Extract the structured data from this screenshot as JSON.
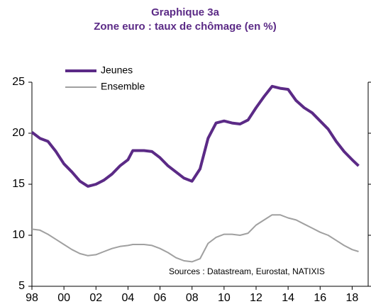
{
  "chart_data": {
    "type": "line",
    "title": "Graphique 3a",
    "subtitle": "Zone euro : taux de chômage (en %)",
    "annotation": "Sources : Datastream, Eurostat, NATIXIS",
    "legend": "top-left",
    "x": [
      1998,
      1998.5,
      1999,
      1999.5,
      2000,
      2000.5,
      2001,
      2001.5,
      2002,
      2002.5,
      2003,
      2003.5,
      2004,
      2004.3,
      2005,
      2005.5,
      2006,
      2006.5,
      2007,
      2007.5,
      2008,
      2008.5,
      2009,
      2009.5,
      2010,
      2010.5,
      2011,
      2011.5,
      2012,
      2012.5,
      2013,
      2013.5,
      2014,
      2014.5,
      2015,
      2015.5,
      2016,
      2016.5,
      2017,
      2017.5,
      2018,
      2018.4
    ],
    "series": [
      {
        "name": "Jeunes",
        "color": "#5b2a86",
        "values": [
          20.1,
          19.5,
          19.2,
          18.2,
          17.0,
          16.2,
          15.3,
          14.8,
          15.0,
          15.4,
          16.0,
          16.8,
          17.4,
          18.3,
          18.3,
          18.2,
          17.6,
          16.8,
          16.2,
          15.6,
          15.3,
          16.5,
          19.5,
          21.0,
          21.2,
          21.0,
          20.9,
          21.3,
          22.5,
          23.6,
          24.6,
          24.4,
          24.3,
          23.2,
          22.5,
          22.0,
          21.2,
          20.4,
          19.2,
          18.2,
          17.4,
          16.8
        ]
      },
      {
        "name": "Ensemble",
        "color": "#a0a0a0",
        "values": [
          10.6,
          10.5,
          10.1,
          9.6,
          9.1,
          8.6,
          8.2,
          8.0,
          8.1,
          8.4,
          8.7,
          8.9,
          9.0,
          9.1,
          9.1,
          9.0,
          8.7,
          8.3,
          7.8,
          7.5,
          7.4,
          7.7,
          9.2,
          9.8,
          10.1,
          10.1,
          10.0,
          10.2,
          11.0,
          11.5,
          12.0,
          12.0,
          11.7,
          11.5,
          11.1,
          10.7,
          10.3,
          10.0,
          9.5,
          9.0,
          8.6,
          8.4
        ]
      }
    ],
    "xlim": [
      1998,
      2019
    ],
    "xticks": [
      {
        "value": 1998,
        "label": "98"
      },
      {
        "value": 2000,
        "label": "00"
      },
      {
        "value": 2002,
        "label": "02"
      },
      {
        "value": 2004,
        "label": "04"
      },
      {
        "value": 2006,
        "label": "06"
      },
      {
        "value": 2008,
        "label": "08"
      },
      {
        "value": 2010,
        "label": "10"
      },
      {
        "value": 2012,
        "label": "12"
      },
      {
        "value": 2014,
        "label": "14"
      },
      {
        "value": 2016,
        "label": "16"
      },
      {
        "value": 2018,
        "label": "18"
      }
    ],
    "ylim": [
      5,
      25
    ],
    "yticks": [
      5,
      10,
      15,
      20,
      25
    ]
  }
}
